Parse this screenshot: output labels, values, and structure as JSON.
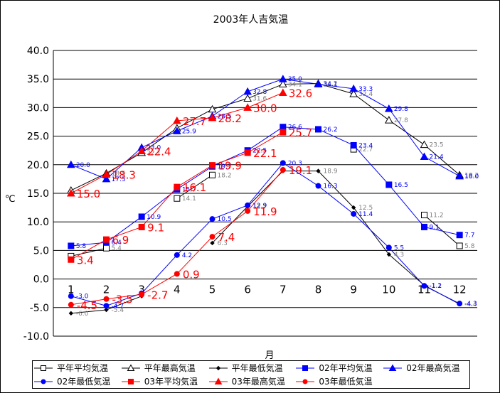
{
  "chart_data": {
    "type": "line",
    "title": "2003年人吉気温",
    "xlabel": "月",
    "ylabel": "℃",
    "ylim": [
      -10,
      40
    ],
    "yticks": [
      "40.0",
      "35.0",
      "30.0",
      "25.0",
      "20.0",
      "15.0",
      "10.0",
      "5.0",
      "0.0",
      "-5.0",
      "-10.0"
    ],
    "categories": [
      1,
      2,
      3,
      4,
      5,
      6,
      7,
      8,
      9,
      10,
      11,
      12
    ],
    "grid": true,
    "legend_position": "bottom",
    "series": [
      {
        "name": "平年平均気温",
        "color": "#000000",
        "marker": "open-square",
        "label_color": "#808080",
        "label_size": "small",
        "values": [
          4.0,
          5.4,
          null,
          14.1,
          18.2,
          null,
          null,
          null,
          22.7,
          null,
          11.2,
          5.8
        ],
        "labels": [
          "",
          "5.4",
          "",
          "14.1",
          "18.2",
          "",
          "",
          "",
          "22.7",
          "",
          "11.2",
          "5.8"
        ]
      },
      {
        "name": "平年最高気温",
        "color": "#000000",
        "marker": "open-triangle",
        "label_color": "#808080",
        "label_size": "small",
        "values": [
          15.5,
          18.5,
          22.1,
          26.4,
          29.7,
          31.6,
          34.1,
          34.2,
          32.4,
          27.8,
          23.5,
          18.2
        ],
        "labels": [
          "",
          "18.5",
          "22.1",
          "",
          "",
          "31.6",
          "34.1",
          "34.2",
          "32.4",
          "27.8",
          "23.5",
          "18.2"
        ]
      },
      {
        "name": "平年最低気温",
        "color": "#000000",
        "marker": "small-diamond",
        "label_color": "#808080",
        "label_size": "small",
        "values": [
          -6.0,
          -5.4,
          -3.0,
          null,
          6.3,
          12.7,
          18.9,
          18.9,
          12.5,
          4.3,
          -1.1,
          -4.4
        ],
        "labels": [
          "-6.0",
          "-5.4",
          "",
          "",
          "6.3",
          "12.7",
          "",
          "18.9",
          "12.5",
          "4.3",
          "-1.1",
          "-4.4"
        ]
      },
      {
        "name": "02年平均気温",
        "color": "#0000FF",
        "marker": "filled-square",
        "label_color": "#0000FF",
        "label_size": "small",
        "values": [
          5.8,
          6.4,
          10.9,
          15.7,
          19.7,
          22.5,
          26.6,
          26.2,
          23.4,
          16.5,
          9.1,
          7.7
        ],
        "labels": [
          "5.8",
          "6.4",
          "10.9",
          "15.7",
          "19.7",
          "22.5",
          "26.6",
          "26.2",
          "23.4",
          "16.5",
          "9.1",
          "7.7"
        ]
      },
      {
        "name": "02年最高気温",
        "color": "#0000FF",
        "marker": "filled-triangle",
        "label_color": "#0000FF",
        "label_size": "small",
        "values": [
          20.0,
          17.5,
          23.0,
          25.9,
          28.5,
          32.8,
          35.0,
          34.1,
          33.3,
          29.8,
          21.4,
          18.0
        ],
        "labels": [
          "20.0",
          "17.5",
          "23.0",
          "25.9",
          "28.5",
          "32.8",
          "35.0",
          "34.1",
          "33.3",
          "29.8",
          "21.4",
          "18.0"
        ]
      },
      {
        "name": "02年最低気温",
        "color": "#0000FF",
        "marker": "filled-circle",
        "label_color": "#0000FF",
        "label_size": "small",
        "values": [
          -3.0,
          -4.7,
          -2.5,
          4.2,
          10.5,
          12.9,
          20.3,
          16.3,
          11.4,
          5.5,
          -1.2,
          -4.3
        ],
        "labels": [
          "-3.0",
          "-4.7",
          "",
          "4.2",
          "10.5",
          "12.9",
          "20.3",
          "16.3",
          "11.4",
          "5.5",
          "-1.2",
          "-4.3"
        ]
      },
      {
        "name": "03年平均気温",
        "color": "#FF0000",
        "marker": "filled-square",
        "label_color": "#FF0000",
        "label_size": "large",
        "values": [
          3.4,
          6.9,
          9.1,
          16.1,
          19.9,
          22.1,
          25.7,
          null,
          null,
          null,
          null,
          null
        ],
        "labels": [
          "3.4",
          "6.9",
          "9.1",
          "16.1",
          "19.9",
          "22.1",
          "25.7",
          "",
          "",
          "",
          "",
          ""
        ]
      },
      {
        "name": "03年最高気温",
        "color": "#FF0000",
        "marker": "filled-triangle",
        "label_color": "#FF0000",
        "label_size": "large",
        "values": [
          15.0,
          18.3,
          22.4,
          27.7,
          28.2,
          30.0,
          32.6,
          null,
          null,
          null,
          null,
          null
        ],
        "labels": [
          "15.0",
          "18.3",
          "22.4",
          "27.7",
          "28.2",
          "30.0",
          "32.6",
          "",
          "",
          "",
          "",
          ""
        ]
      },
      {
        "name": "03年最低気温",
        "color": "#FF0000",
        "marker": "filled-circle",
        "label_color": "#FF0000",
        "label_size": "large",
        "values": [
          -4.5,
          -3.5,
          -2.7,
          0.9,
          7.4,
          11.9,
          19.1,
          null,
          null,
          null,
          null,
          null
        ],
        "labels": [
          "-4.5",
          "-3.5",
          "-2.7",
          "0.9",
          "7.4",
          "11.9",
          "19.1",
          "",
          "",
          "",
          "",
          ""
        ]
      }
    ]
  }
}
